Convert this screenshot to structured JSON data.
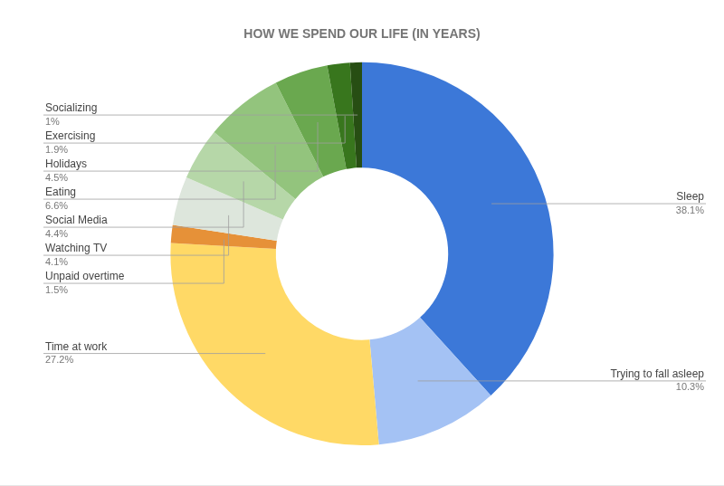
{
  "chart_data": {
    "type": "doughnut",
    "title": "HOW WE SPEND OUR LIFE (IN YEARS)",
    "categories": [
      "Sleep",
      "Trying to fall asleep",
      "Time at work",
      "Unpaid overtime",
      "Watching TV",
      "Social Media",
      "Eating",
      "Holidays",
      "Exercising",
      "Socializing"
    ],
    "values": [
      38.1,
      10.3,
      27.2,
      1.5,
      4.1,
      4.4,
      6.6,
      4.5,
      1.9,
      1
    ],
    "value_labels": [
      "38.1%",
      "10.3%",
      "27.2%",
      "1.5%",
      "4.1%",
      "4.4%",
      "6.6%",
      "4.5%",
      "1.9%",
      "1%"
    ],
    "colors": [
      "#3c78d8",
      "#a4c2f4",
      "#ffd966",
      "#e69138",
      "#dde6dc",
      "#b6d7a8",
      "#93c47d",
      "#6aa84f",
      "#38761d",
      "#274e13"
    ],
    "data_labels": true
  }
}
